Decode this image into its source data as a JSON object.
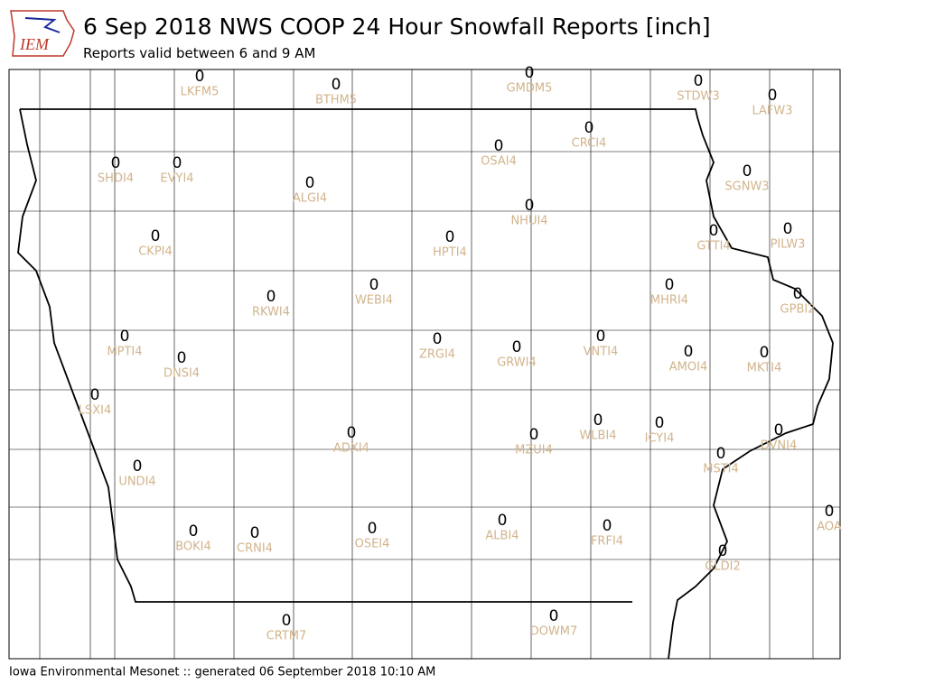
{
  "map": {
    "logo": "IEM",
    "title": "6 Sep 2018 NWS COOP 24 Hour Snowfall Reports [inch]",
    "subtitle": "Reports valid between 6 and 9 AM",
    "footer": "Iowa Environmental Mesonet :: generated 06 September 2018 10:10 AM",
    "stations": [
      {
        "id": "LKFM5",
        "value": 0
      },
      {
        "id": "BTHM5",
        "value": 0
      },
      {
        "id": "GMDM5",
        "value": 0
      },
      {
        "id": "STDW3",
        "value": 0
      },
      {
        "id": "LAFW3",
        "value": 0
      },
      {
        "id": "SHDI4",
        "value": 0
      },
      {
        "id": "EVYI4",
        "value": 0
      },
      {
        "id": "ALGI4",
        "value": 0
      },
      {
        "id": "OSAI4",
        "value": 0
      },
      {
        "id": "CRCI4",
        "value": 0
      },
      {
        "id": "NHUI4",
        "value": 0
      },
      {
        "id": "SGNW3",
        "value": 0
      },
      {
        "id": "CKPI4",
        "value": 0
      },
      {
        "id": "HPTI4",
        "value": 0
      },
      {
        "id": "GTTI4",
        "value": 0
      },
      {
        "id": "PILW3",
        "value": 0
      },
      {
        "id": "RKWI4",
        "value": 0
      },
      {
        "id": "WEBI4",
        "value": 0
      },
      {
        "id": "MHRI4",
        "value": 0
      },
      {
        "id": "GPBI2",
        "value": 0
      },
      {
        "id": "MPTI4",
        "value": 0
      },
      {
        "id": "DNSI4",
        "value": 0
      },
      {
        "id": "ZRGI4",
        "value": 0
      },
      {
        "id": "GRWI4",
        "value": 0
      },
      {
        "id": "VNTI4",
        "value": 0
      },
      {
        "id": "AMOI4",
        "value": 0
      },
      {
        "id": "MKTI4",
        "value": 0
      },
      {
        "id": "LSXI4",
        "value": 0
      },
      {
        "id": "ADXI4",
        "value": 0
      },
      {
        "id": "MZUI4",
        "value": 0
      },
      {
        "id": "WLBI4",
        "value": 0
      },
      {
        "id": "ICYI4",
        "value": 0
      },
      {
        "id": "DVNI4",
        "value": 0
      },
      {
        "id": "MSTI4",
        "value": 0
      },
      {
        "id": "UNDI4",
        "value": 0
      },
      {
        "id": "AOA",
        "value": 0
      },
      {
        "id": "BOKI4",
        "value": 0
      },
      {
        "id": "CRNI4",
        "value": 0
      },
      {
        "id": "OSEI4",
        "value": 0
      },
      {
        "id": "ALBI4",
        "value": 0
      },
      {
        "id": "FRFI4",
        "value": 0
      },
      {
        "id": "GLDI2",
        "value": 0
      },
      {
        "id": "CRTM7",
        "value": 0
      },
      {
        "id": "DOWM7",
        "value": 0
      }
    ]
  }
}
